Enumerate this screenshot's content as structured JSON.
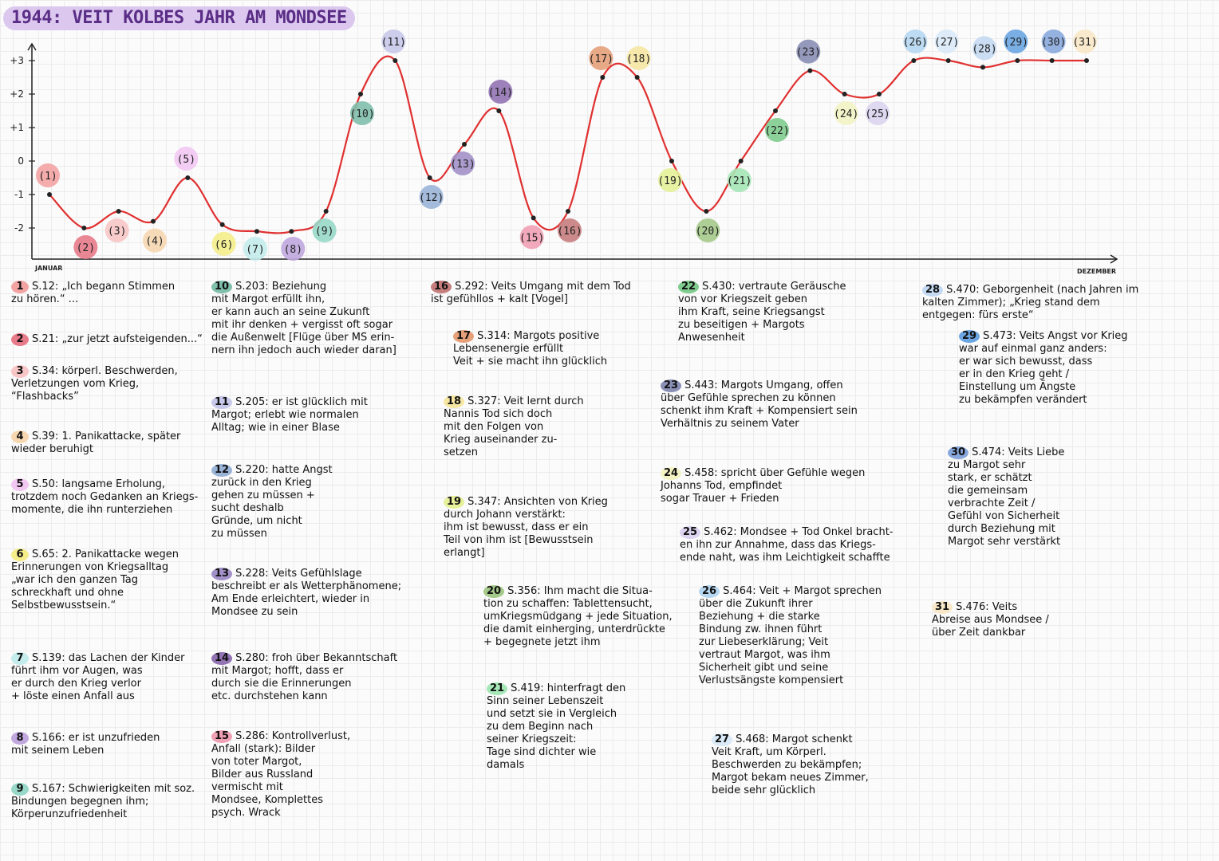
{
  "title": "1944: VEIT KOLBES JAHR AM MONDSEE",
  "chart_data": {
    "type": "line",
    "title": "1944: VEIT KOLBES JAHR AM MONDSEE",
    "xlabel_start": "JANUAR",
    "xlabel_end": "DEZEMBER",
    "ylim": [
      -2.5,
      3.5
    ],
    "yticks": [
      "+3",
      "+2",
      "+1",
      "0",
      "-1",
      "-2"
    ],
    "ytick_values": [
      3,
      2,
      1,
      0,
      -1,
      -2
    ],
    "line_color": "#e03030",
    "points": [
      {
        "label": "(1)",
        "x": 1,
        "y": -1.0,
        "color": "#f4a3a3"
      },
      {
        "label": "(2)",
        "x": 2,
        "y": -2.0,
        "color": "#e87a8a"
      },
      {
        "label": "(3)",
        "x": 3,
        "y": -1.5,
        "color": "#f8c6c6"
      },
      {
        "label": "(4)",
        "x": 4,
        "y": -1.8,
        "color": "#f6d7b0"
      },
      {
        "label": "(5)",
        "x": 5,
        "y": -0.5,
        "color": "#f2c8f2"
      },
      {
        "label": "(6)",
        "x": 6,
        "y": -1.9,
        "color": "#f4ed8a"
      },
      {
        "label": "(7)",
        "x": 7,
        "y": -2.1,
        "color": "#c4ecec"
      },
      {
        "label": "(8)",
        "x": 8,
        "y": -2.1,
        "color": "#c0a7de"
      },
      {
        "label": "(9)",
        "x": 9,
        "y": -1.5,
        "color": "#98d8c8"
      },
      {
        "label": "(10)",
        "x": 10,
        "y": 2.0,
        "color": "#7fbfab"
      },
      {
        "label": "(11)",
        "x": 11,
        "y": 3.0,
        "color": "#c8c8ea"
      },
      {
        "label": "(12)",
        "x": 12,
        "y": -0.5,
        "color": "#9ab4d8"
      },
      {
        "label": "(13)",
        "x": 13,
        "y": 0.5,
        "color": "#a291c8"
      },
      {
        "label": "(14)",
        "x": 14,
        "y": 1.5,
        "color": "#9273b3"
      },
      {
        "label": "(15)",
        "x": 15,
        "y": -1.7,
        "color": "#f0a0b4"
      },
      {
        "label": "(16)",
        "x": 16,
        "y": -1.5,
        "color": "#c67d7d"
      },
      {
        "label": "(17)",
        "x": 17,
        "y": 2.5,
        "color": "#e6a07a"
      },
      {
        "label": "(18)",
        "x": 18,
        "y": 2.5,
        "color": "#f6e7a2"
      },
      {
        "label": "(19)",
        "x": 19,
        "y": 0.0,
        "color": "#e6f199"
      },
      {
        "label": "(20)",
        "x": 20,
        "y": -1.5,
        "color": "#a4c98a"
      },
      {
        "label": "(21)",
        "x": 21,
        "y": 0.0,
        "color": "#a5e7b6"
      },
      {
        "label": "(22)",
        "x": 22,
        "y": 1.5,
        "color": "#7fcc8e"
      },
      {
        "label": "(23)",
        "x": 23,
        "y": 2.7,
        "color": "#8a8fb6"
      },
      {
        "label": "(24)",
        "x": 24,
        "y": 2.0,
        "color": "#f3f3c4"
      },
      {
        "label": "(25)",
        "x": 25,
        "y": 2.0,
        "color": "#dcd4f0"
      },
      {
        "label": "(26)",
        "x": 26,
        "y": 3.0,
        "color": "#b6d7f1"
      },
      {
        "label": "(27)",
        "x": 27,
        "y": 3.0,
        "color": "#daeaf8"
      },
      {
        "label": "(28)",
        "x": 28,
        "y": 2.8,
        "color": "#c4d9f2"
      },
      {
        "label": "(29)",
        "x": 29,
        "y": 3.0,
        "color": "#6ca6e2"
      },
      {
        "label": "(30)",
        "x": 30,
        "y": 3.0,
        "color": "#88a8dd"
      },
      {
        "label": "(31)",
        "x": 31,
        "y": 3.0,
        "color": "#f8e8c8"
      }
    ]
  },
  "notes": [
    {
      "num": "1",
      "color": "#f4a3a3",
      "text": "S.12: „Ich begann Stimmen\nzu hören.“ ..."
    },
    {
      "num": "2",
      "color": "#e87a8a",
      "text": "S.21: „zur jetzt aufsteigenden...“"
    },
    {
      "num": "3",
      "color": "#f8c6c6",
      "text": "S.34: körperl. Beschwerden,\nVerletzungen vom Krieg,\n“Flashbacks”"
    },
    {
      "num": "4",
      "color": "#f6d7b0",
      "text": "S.39: 1. Panikattacke, später\nwieder beruhigt"
    },
    {
      "num": "5",
      "color": "#f2c8f2",
      "text": "S.50: langsame Erholung,\ntrotzdem noch Gedanken an Kriegs-\nmomente, die ihn runterziehen"
    },
    {
      "num": "6",
      "color": "#f4ed8a",
      "text": "S.65: 2. Panikattacke wegen\nErinnerungen von Kriegsalltag\n„war ich den ganzen Tag\nschreckhaft und ohne\nSelbstbewusstsein.“"
    },
    {
      "num": "7",
      "color": "#c4ecec",
      "text": "S.139: das Lachen der Kinder\nführt ihm vor Augen, was\ner durch den Krieg verlor\n+ löste einen Anfall aus"
    },
    {
      "num": "8",
      "color": "#c0a7de",
      "text": "S.166: er ist unzufrieden\nmit seinem Leben"
    },
    {
      "num": "9",
      "color": "#98d8c8",
      "text": "S.167: Schwierigkeiten mit soz.\nBindungen begegnen ihm;\nKörperunzufriedenheit"
    },
    {
      "num": "10",
      "color": "#7fbfab",
      "text": "S.203: Beziehung\nmit Margot erfüllt ihn,\ner kann auch an seine Zukunft\nmit ihr denken + vergisst oft sogar\ndie Außenwelt [Flüge über MS erin-\nnern ihn jedoch auch wieder daran]"
    },
    {
      "num": "11",
      "color": "#c8c8ea",
      "text": "S.205: er ist glücklich mit\nMargot; erlebt wie normalen\nAlltag; wie in einer Blase"
    },
    {
      "num": "12",
      "color": "#9ab4d8",
      "text": "S.220: hatte Angst\nzurück in den Krieg\ngehen zu müssen +\nsucht deshalb\nGründe, um nicht\nzu müssen"
    },
    {
      "num": "13",
      "color": "#a291c8",
      "text": "S.228: Veits Gefühlslage\nbeschreibt er als Wetterphänomene;\nAm Ende erleichtert, wieder in\nMondsee zu sein"
    },
    {
      "num": "14",
      "color": "#9273b3",
      "text": "S.280: froh über Bekanntschaft\nmit Margot; hofft, dass er\ndurch sie die Erinnerungen\netc. durchstehen kann"
    },
    {
      "num": "15",
      "color": "#f0a0b4",
      "text": "S.286: Kontrollverlust,\nAnfall (stark): Bilder\nvon toter Margot,\nBilder aus Russland\nvermischt mit\nMondsee, Komplettes\npsych. Wrack"
    },
    {
      "num": "16",
      "color": "#c67d7d",
      "text": "S.292: Veits Umgang mit dem Tod\nist gefühllos + kalt [Vogel]"
    },
    {
      "num": "17",
      "color": "#e6a07a",
      "text": "S.314: Margots positive\nLebensenergie erfüllt\nVeit + sie macht ihn glücklich"
    },
    {
      "num": "18",
      "color": "#f6e7a2",
      "text": "S.327: Veit lernt durch\nNannis Tod sich doch\nmit den Folgen von\nKrieg auseinander zu-\nsetzen"
    },
    {
      "num": "19",
      "color": "#e6f199",
      "text": "S.347: Ansichten von Krieg\ndurch Johann verstärkt:\nihm ist bewusst, dass er ein\nTeil von ihm ist [Bewusstsein\nerlangt]"
    },
    {
      "num": "20",
      "color": "#a4c98a",
      "text": "S.356: Ihm macht die Situa-\ntion zu schaffen: Tablettensucht,\numKriegsmüdgang + jede Situation,\ndie damit einherging, unterdrückte\n+ begegnete jetzt ihm"
    },
    {
      "num": "21",
      "color": "#a5e7b6",
      "text": "S.419: hinterfragt den\nSinn seiner Lebenszeit\nund setzt sie in Vergleich\nzu dem Beginn nach\nseiner Kriegszeit:\nTage sind dichter wie\ndamals"
    },
    {
      "num": "22",
      "color": "#7fcc8e",
      "text": "S.430: vertraute Geräusche\nvon vor Kriegszeit geben\nihm Kraft, seine Kriegsangst\nzu beseitigen + Margots\nAnwesenheit"
    },
    {
      "num": "23",
      "color": "#8a8fb6",
      "text": "S.443: Margots Umgang, offen\nüber Gefühle sprechen zu können\nschenkt ihm Kraft + Kompensiert sein\nVerhältnis zu seinem Vater"
    },
    {
      "num": "24",
      "color": "#f3f3c4",
      "text": "S.458: spricht über Gefühle wegen\nJohanns Tod, empfindet\nsogar Trauer + Frieden"
    },
    {
      "num": "25",
      "color": "#dcd4f0",
      "text": "S.462: Mondsee + Tod Onkel bracht-\nen ihn zur Annahme, dass das Kriegs-\nende naht, was ihm Leichtigkeit schaffte"
    },
    {
      "num": "26",
      "color": "#b6d7f1",
      "text": "S.464: Veit + Margot sprechen\nüber die Zukunft ihrer\nBeziehung + die starke\nBindung zw. ihnen führt\nzur Liebeserklärung; Veit\nvertraut Margot, was ihm\nSicherheit gibt und seine\nVerlustsängste kompensiert"
    },
    {
      "num": "27",
      "color": "#daeaf8",
      "text": "S.468: Margot schenkt\nVeit Kraft, um Körperl.\nBeschwerden zu bekämpfen;\nMargot bekam neues Zimmer,\nbeide sehr glücklich"
    },
    {
      "num": "28",
      "color": "#c4d9f2",
      "text": "S.470: Geborgenheit (nach Jahren im\nkalten Zimmer); „Krieg stand dem\nentgegen: fürs erste“"
    },
    {
      "num": "29",
      "color": "#6ca6e2",
      "text": "S.473: Veits Angst vor Krieg\nwar auf einmal ganz anders:\ner war sich bewusst, dass\ner in den Krieg geht /\nEinstellung um Ängste\nzu bekämpfen verändert"
    },
    {
      "num": "30",
      "color": "#88a8dd",
      "text": "S.474: Veits Liebe\nzu Margot sehr\nstark, er schätzt\ndie gemeinsam\nverbrachte Zeit /\nGefühl von Sicherheit\ndurch Beziehung mit\nMargot sehr verstärkt"
    },
    {
      "num": "31",
      "color": "#f8e8c8",
      "text": "S.476: Veits\nAbreise aus Mondsee /\nüber Zeit dankbar"
    }
  ]
}
